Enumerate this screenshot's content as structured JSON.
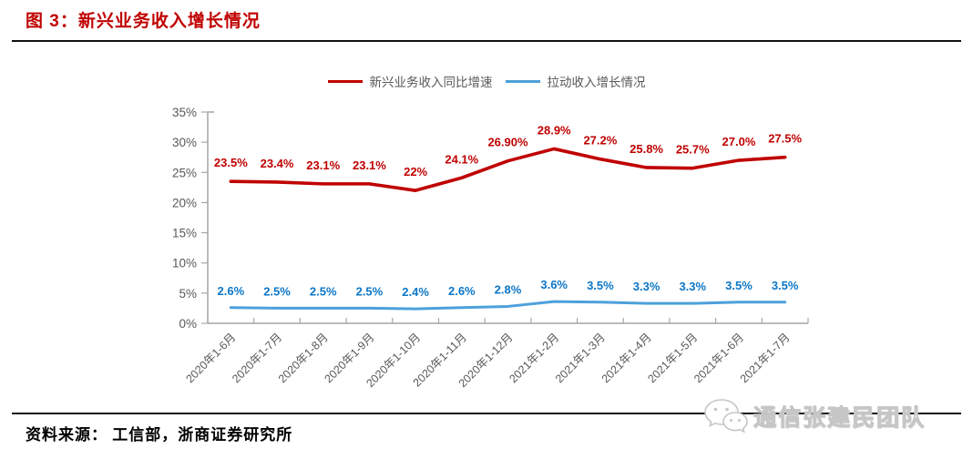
{
  "header": {
    "title": "图 3：新兴业务收入增长情况"
  },
  "footer": {
    "source": "资料来源： 工信部，浙商证券研究所",
    "watermark": "通信张建民团队",
    "watermark_icon": "wechat-bubbles-icon"
  },
  "colors": {
    "title_red": "#c00000",
    "series_red": "#c00000",
    "series_blue": "#4da0db",
    "blue_label": "#0b76c8",
    "axis_gray": "#a6a6a6",
    "tick_text_gray": "#595959",
    "rule_black": "#111111"
  },
  "chart_data": {
    "type": "line",
    "title": "",
    "xlabel": "",
    "ylabel": "",
    "grid": false,
    "legend_position": "top-center",
    "ylim": [
      0,
      35
    ],
    "ytick_labels": [
      "0%",
      "5%",
      "10%",
      "15%",
      "20%",
      "25%",
      "30%",
      "35%"
    ],
    "categories": [
      "2020年1-6月",
      "2020年1-7月",
      "2020年1-8月",
      "2020年1-9月",
      "2020年1-10月",
      "2020年1-11月",
      "2020年1-12月",
      "2021年1-2月",
      "2021年1-3月",
      "2021年1-4月",
      "2021年1-5月",
      "2021年1-6月",
      "2021年1-7月"
    ],
    "series": [
      {
        "name": "新兴业务收入同比增速",
        "color": "#c00000",
        "label_color": "#c00000",
        "values": [
          23.5,
          23.4,
          23.1,
          23.1,
          22,
          24.1,
          26.9,
          28.9,
          27.2,
          25.8,
          25.7,
          27.0,
          27.5
        ],
        "labels": [
          "23.5%",
          "23.4%",
          "23.1%",
          "23.1%",
          "22%",
          "24.1%",
          "26.90%",
          "28.9%",
          "27.2%",
          "25.8%",
          "25.7%",
          "27.0%",
          "27.5%"
        ]
      },
      {
        "name": "拉动收入增长情况",
        "color": "#4da0db",
        "label_color": "#0b76c8",
        "values": [
          2.6,
          2.5,
          2.5,
          2.5,
          2.4,
          2.6,
          2.8,
          3.6,
          3.5,
          3.3,
          3.3,
          3.5,
          3.5
        ],
        "labels": [
          "2.6%",
          "2.5%",
          "2.5%",
          "2.5%",
          "2.4%",
          "2.6%",
          "2.8%",
          "3.6%",
          "3.5%",
          "3.3%",
          "3.3%",
          "3.5%",
          "3.5%"
        ]
      }
    ]
  }
}
